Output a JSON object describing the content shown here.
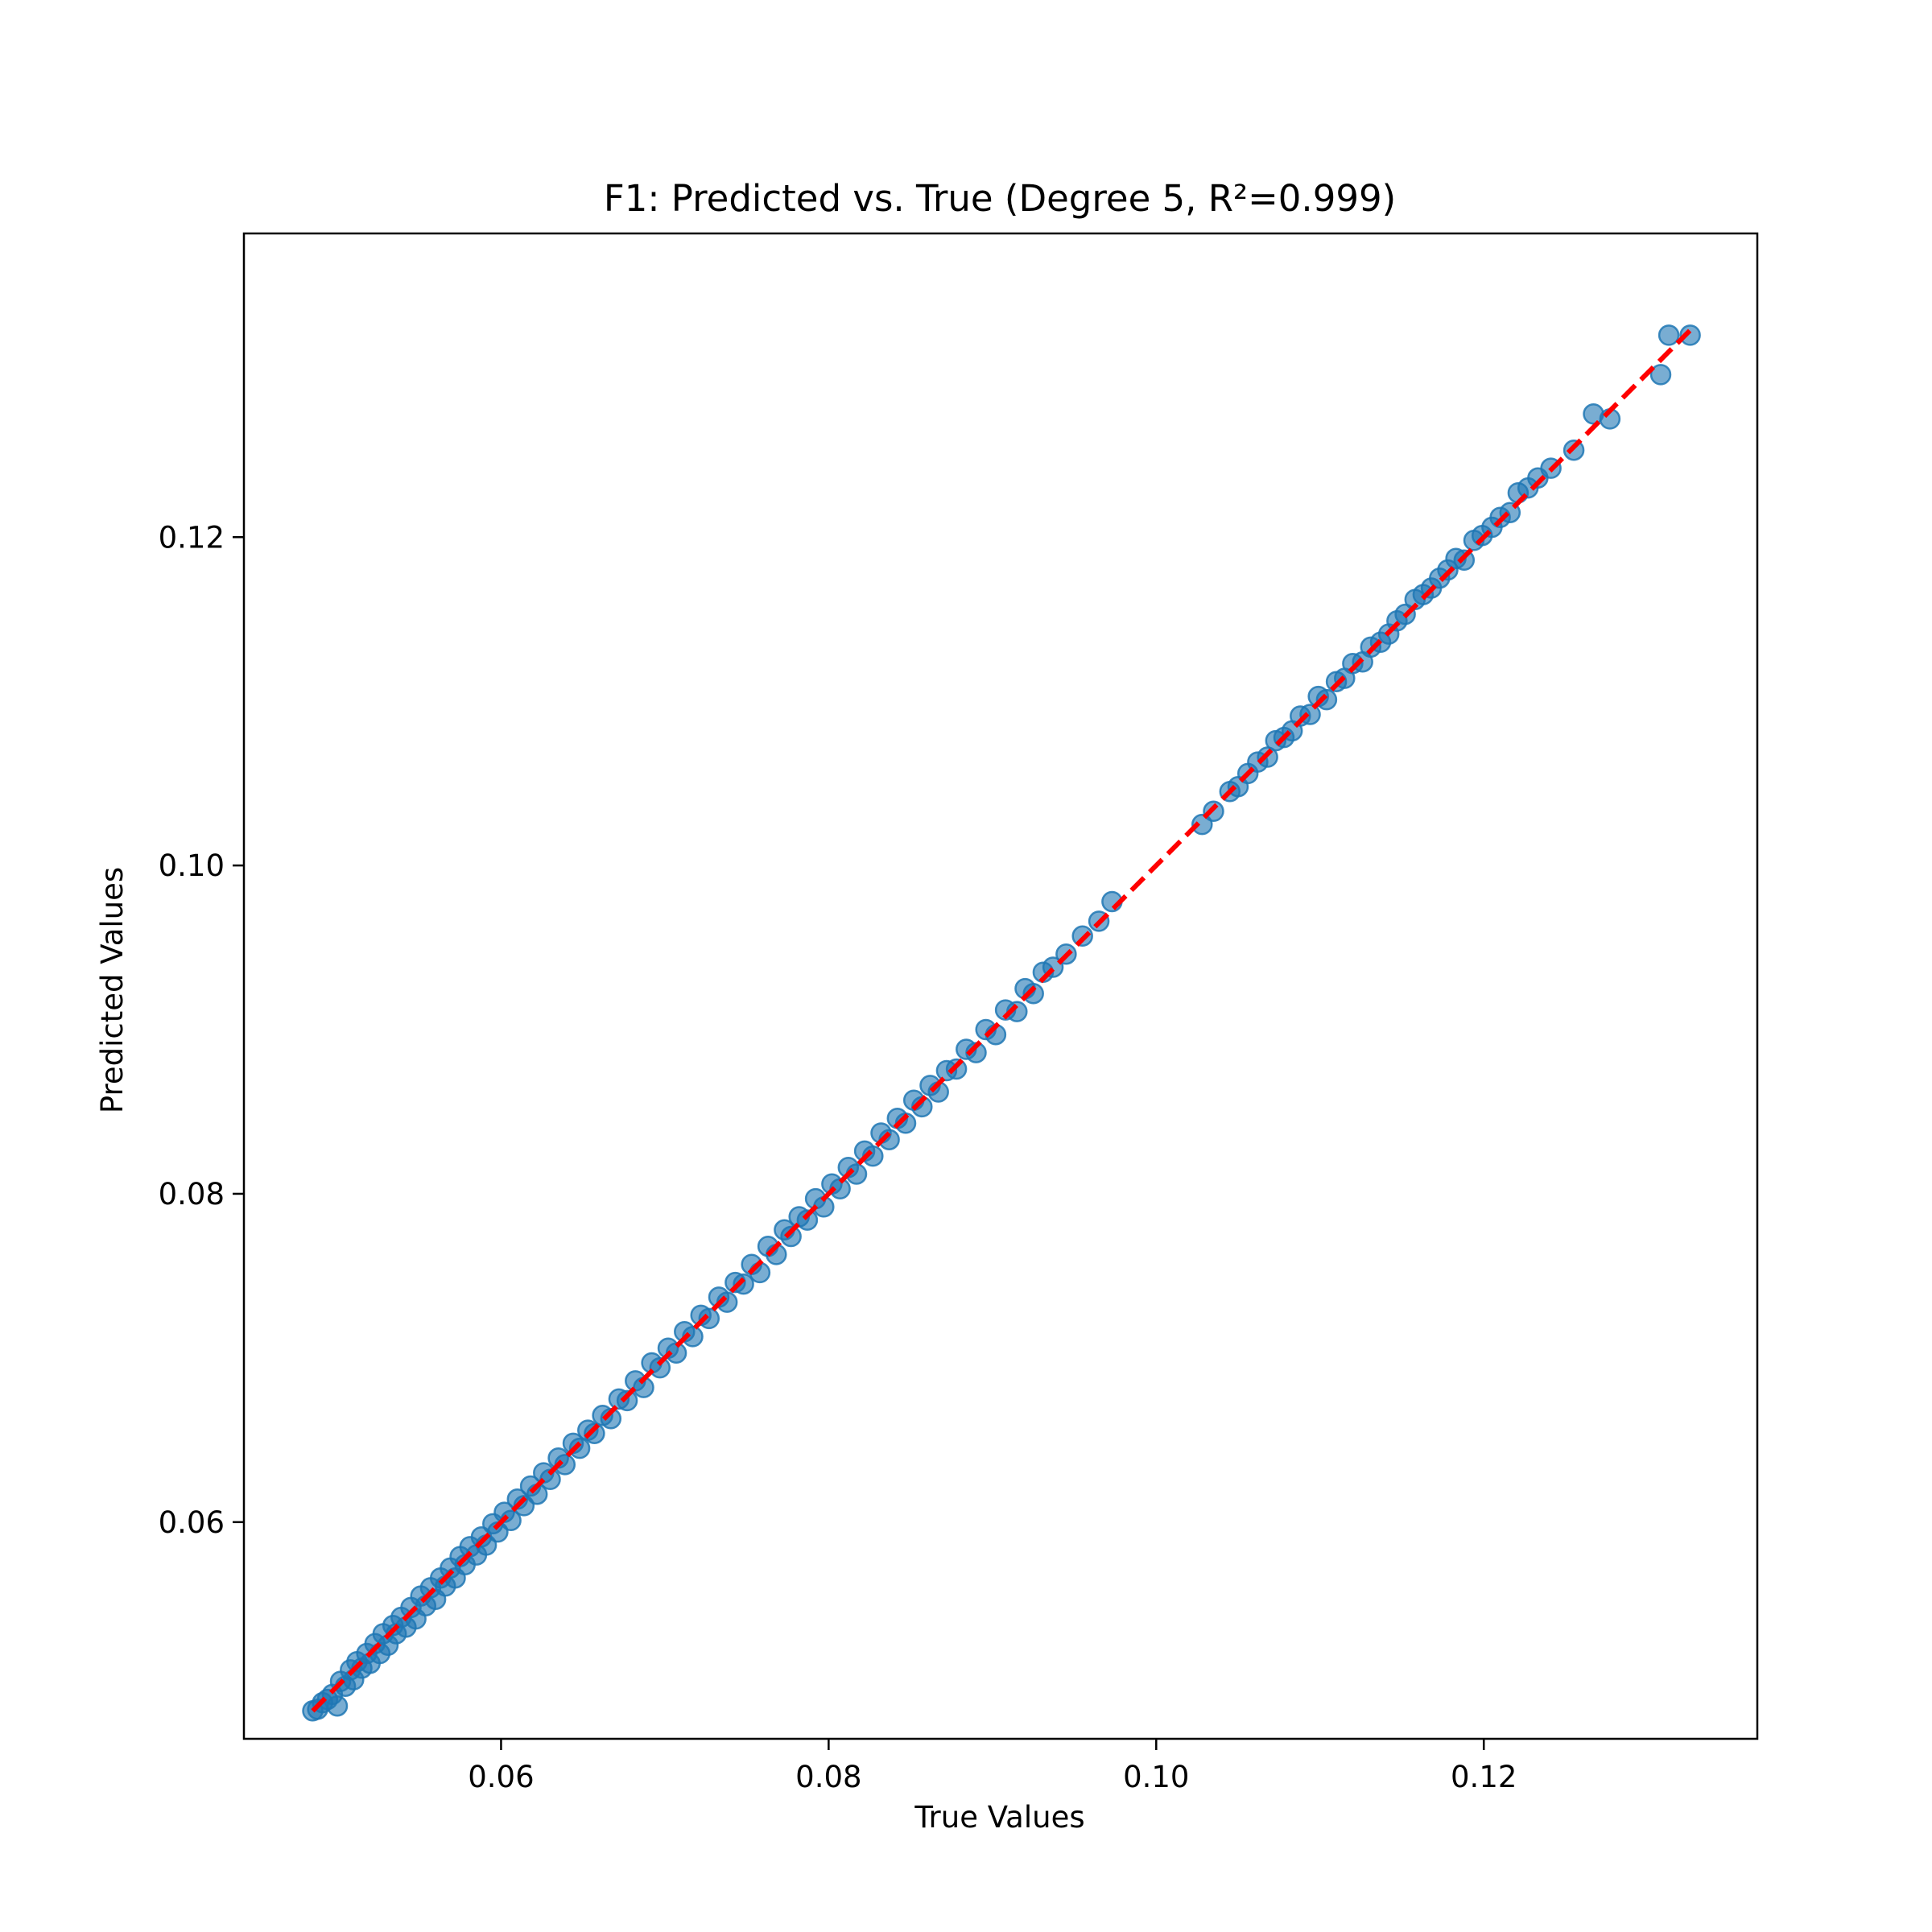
{
  "chart_data": {
    "type": "scatter",
    "title": "F1: Predicted vs. True (Degree 5, R²=0.999)",
    "xlabel": "True Values",
    "ylabel": "Predicted Values",
    "xlim": [
      0.0443,
      0.1367
    ],
    "ylim": [
      0.0468,
      0.1385
    ],
    "xticks": [
      {
        "value": 0.06,
        "label": "0.06"
      },
      {
        "value": 0.08,
        "label": "0.08"
      },
      {
        "value": 0.1,
        "label": "0.10"
      },
      {
        "value": 0.12,
        "label": "0.12"
      }
    ],
    "yticks": [
      {
        "value": 0.06,
        "label": "0.06"
      },
      {
        "value": 0.08,
        "label": "0.08"
      },
      {
        "value": 0.1,
        "label": "0.10"
      },
      {
        "value": 0.12,
        "label": "0.12"
      }
    ],
    "grid": false,
    "point_color": "#1f77b4",
    "line_color": "#ff0000",
    "reference_line": {
      "style": "dashed",
      "from": [
        0.0485,
        0.0485
      ],
      "to": [
        0.1326,
        0.1326
      ]
    },
    "points": [
      [
        0.0485,
        0.0485
      ],
      [
        0.0488,
        0.0486
      ],
      [
        0.0491,
        0.049
      ],
      [
        0.0494,
        0.0492
      ],
      [
        0.0497,
        0.0495
      ],
      [
        0.05,
        0.0488
      ],
      [
        0.0502,
        0.0503
      ],
      [
        0.0505,
        0.05
      ],
      [
        0.0508,
        0.051
      ],
      [
        0.051,
        0.0504
      ],
      [
        0.0512,
        0.0515
      ],
      [
        0.0515,
        0.0511
      ],
      [
        0.0518,
        0.052
      ],
      [
        0.052,
        0.0514
      ],
      [
        0.0523,
        0.0526
      ],
      [
        0.0526,
        0.052
      ],
      [
        0.0528,
        0.0532
      ],
      [
        0.0531,
        0.0525
      ],
      [
        0.0534,
        0.0537
      ],
      [
        0.0536,
        0.0532
      ],
      [
        0.0539,
        0.0542
      ],
      [
        0.0542,
        0.0536
      ],
      [
        0.0545,
        0.0548
      ],
      [
        0.0548,
        0.0541
      ],
      [
        0.0551,
        0.0555
      ],
      [
        0.0554,
        0.0549
      ],
      [
        0.0557,
        0.056
      ],
      [
        0.056,
        0.0553
      ],
      [
        0.0563,
        0.0566
      ],
      [
        0.0566,
        0.0561
      ],
      [
        0.0569,
        0.0572
      ],
      [
        0.0572,
        0.0566
      ],
      [
        0.0575,
        0.0579
      ],
      [
        0.0578,
        0.0574
      ],
      [
        0.0581,
        0.0585
      ],
      [
        0.0585,
        0.058
      ],
      [
        0.0588,
        0.0591
      ],
      [
        0.0591,
        0.0586
      ],
      [
        0.0595,
        0.0599
      ],
      [
        0.0598,
        0.0594
      ],
      [
        0.0602,
        0.0606
      ],
      [
        0.0606,
        0.0601
      ],
      [
        0.061,
        0.0614
      ],
      [
        0.0614,
        0.061
      ],
      [
        0.0618,
        0.0622
      ],
      [
        0.0622,
        0.0617
      ],
      [
        0.0626,
        0.063
      ],
      [
        0.063,
        0.0626
      ],
      [
        0.0635,
        0.0639
      ],
      [
        0.0639,
        0.0635
      ],
      [
        0.0644,
        0.0648
      ],
      [
        0.0648,
        0.0645
      ],
      [
        0.0653,
        0.0656
      ],
      [
        0.0657,
        0.0654
      ],
      [
        0.0662,
        0.0665
      ],
      [
        0.0667,
        0.0663
      ],
      [
        0.0672,
        0.0675
      ],
      [
        0.0677,
        0.0674
      ],
      [
        0.0682,
        0.0686
      ],
      [
        0.0687,
        0.0682
      ],
      [
        0.0692,
        0.0697
      ],
      [
        0.0697,
        0.0694
      ],
      [
        0.0702,
        0.0706
      ],
      [
        0.0707,
        0.0703
      ],
      [
        0.0712,
        0.0716
      ],
      [
        0.0717,
        0.0713
      ],
      [
        0.0722,
        0.0726
      ],
      [
        0.0727,
        0.0724
      ],
      [
        0.0733,
        0.0737
      ],
      [
        0.0738,
        0.0734
      ],
      [
        0.0743,
        0.0746
      ],
      [
        0.0748,
        0.0745
      ],
      [
        0.0753,
        0.0757
      ],
      [
        0.0758,
        0.0752
      ],
      [
        0.0763,
        0.0768
      ],
      [
        0.0768,
        0.0763
      ],
      [
        0.0773,
        0.0778
      ],
      [
        0.0777,
        0.0774
      ],
      [
        0.0782,
        0.0786
      ],
      [
        0.0787,
        0.0784
      ],
      [
        0.0792,
        0.0797
      ],
      [
        0.0797,
        0.0792
      ],
      [
        0.0802,
        0.0806
      ],
      [
        0.0807,
        0.0803
      ],
      [
        0.0812,
        0.0816
      ],
      [
        0.0817,
        0.0812
      ],
      [
        0.0822,
        0.0826
      ],
      [
        0.0827,
        0.0823
      ],
      [
        0.0832,
        0.0837
      ],
      [
        0.0837,
        0.0833
      ],
      [
        0.0842,
        0.0846
      ],
      [
        0.0847,
        0.0843
      ],
      [
        0.0852,
        0.0857
      ],
      [
        0.0857,
        0.0853
      ],
      [
        0.0862,
        0.0866
      ],
      [
        0.0867,
        0.0862
      ],
      [
        0.0872,
        0.0875
      ],
      [
        0.0878,
        0.0876
      ],
      [
        0.0884,
        0.0888
      ],
      [
        0.089,
        0.0886
      ],
      [
        0.0896,
        0.09
      ],
      [
        0.0902,
        0.0897
      ],
      [
        0.0908,
        0.0912
      ],
      [
        0.0915,
        0.0911
      ],
      [
        0.092,
        0.0925
      ],
      [
        0.0925,
        0.0922
      ],
      [
        0.0931,
        0.0935
      ],
      [
        0.0937,
        0.0938
      ],
      [
        0.0945,
        0.0946
      ],
      [
        0.0955,
        0.0957
      ],
      [
        0.0965,
        0.0966
      ],
      [
        0.0973,
        0.0978
      ],
      [
        0.1028,
        0.1025
      ],
      [
        0.1035,
        0.1033
      ],
      [
        0.1045,
        0.1045
      ],
      [
        0.105,
        0.1048
      ],
      [
        0.1056,
        0.1056
      ],
      [
        0.1062,
        0.1063
      ],
      [
        0.1068,
        0.1066
      ],
      [
        0.1073,
        0.1076
      ],
      [
        0.1078,
        0.1078
      ],
      [
        0.1083,
        0.1082
      ],
      [
        0.1088,
        0.1091
      ],
      [
        0.1094,
        0.1092
      ],
      [
        0.1099,
        0.1103
      ],
      [
        0.1104,
        0.1101
      ],
      [
        0.111,
        0.1112
      ],
      [
        0.1115,
        0.1114
      ],
      [
        0.112,
        0.1123
      ],
      [
        0.1126,
        0.1124
      ],
      [
        0.1131,
        0.1133
      ],
      [
        0.1137,
        0.1136
      ],
      [
        0.1142,
        0.1141
      ],
      [
        0.1147,
        0.1149
      ],
      [
        0.1152,
        0.1153
      ],
      [
        0.1158,
        0.1162
      ],
      [
        0.1163,
        0.1165
      ],
      [
        0.1168,
        0.1169
      ],
      [
        0.1173,
        0.1175
      ],
      [
        0.1178,
        0.118
      ],
      [
        0.1183,
        0.1187
      ],
      [
        0.1188,
        0.1186
      ],
      [
        0.1194,
        0.1198
      ],
      [
        0.1199,
        0.1201
      ],
      [
        0.1205,
        0.1206
      ],
      [
        0.121,
        0.1212
      ],
      [
        0.1216,
        0.1215
      ],
      [
        0.1221,
        0.1227
      ],
      [
        0.1227,
        0.123
      ],
      [
        0.1233,
        0.1236
      ],
      [
        0.1241,
        0.1242
      ],
      [
        0.1255,
        0.1253
      ],
      [
        0.1267,
        0.1275
      ],
      [
        0.1277,
        0.1272
      ],
      [
        0.1308,
        0.1299
      ],
      [
        0.1313,
        0.1323
      ],
      [
        0.1326,
        0.1323
      ]
    ]
  }
}
